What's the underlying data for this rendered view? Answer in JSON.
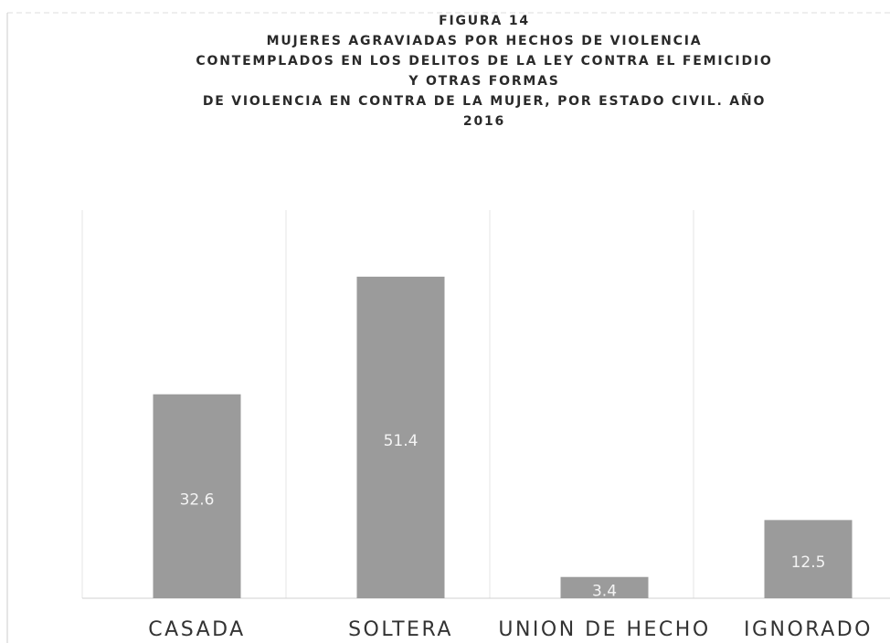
{
  "chart_data": {
    "type": "bar",
    "title": [
      "FIGURA 14",
      "MUJERES AGRAVIADAS POR HECHOS DE VIOLENCIA",
      "CONTEMPLADOS EN LOS DELITOS DE LA LEY CONTRA EL FEMICIDIO",
      "Y OTRAS FORMAS",
      "DE VIOLENCIA EN CONTRA DE LA MUJER, POR ESTADO CIVIL. AÑO",
      "2016"
    ],
    "categories": [
      "CASADA",
      "SOLTERA",
      "UNION DE HECHO",
      "IGNORADO"
    ],
    "values": [
      32.6,
      51.4,
      3.4,
      12.5
    ],
    "color": "#9b9b9b"
  }
}
